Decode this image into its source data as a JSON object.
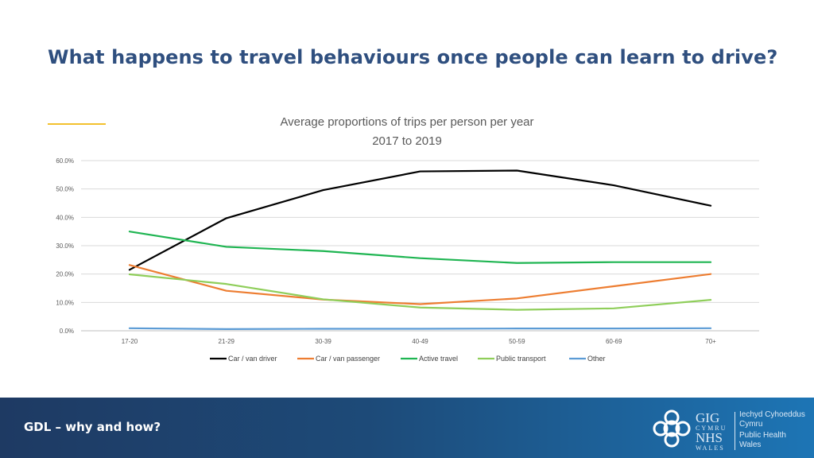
{
  "slide": {
    "title": "What happens to travel behaviours once people can learn to drive?",
    "footer": "GDL – why and how?",
    "accent_color": "#f2c12e",
    "logo": {
      "gig": "GIG",
      "cymru": "CYMRU",
      "nhs": "NHS",
      "wales": "WALES",
      "welsh_name_1": "Iechyd Cyhoeddus",
      "welsh_name_2": "Cymru",
      "english_name_1": "Public Health",
      "english_name_2": "Wales"
    }
  },
  "chart_data": {
    "type": "line",
    "title": "Average proportions of trips per person per year",
    "subtitle": "2017 to 2019",
    "categories": [
      "17-20",
      "21-29",
      "30-39",
      "40-49",
      "50-59",
      "60-69",
      "70+"
    ],
    "ylim": [
      0,
      60
    ],
    "yticks": [
      "0.0%",
      "10.0%",
      "20.0%",
      "30.0%",
      "40.0%",
      "50.0%",
      "60.0%"
    ],
    "grid": true,
    "legend_position": "bottom",
    "series": [
      {
        "name": "Car / van driver",
        "color": "#000000",
        "values": [
          21.5,
          39.7,
          49.6,
          56.2,
          56.5,
          51.3,
          44.1
        ]
      },
      {
        "name": "Car / van passenger",
        "color": "#ed7d31",
        "values": [
          23.2,
          14.1,
          11.0,
          9.4,
          11.4,
          15.7,
          20.0
        ]
      },
      {
        "name": "Active travel",
        "color": "#1fb552",
        "values": [
          35.0,
          29.6,
          28.1,
          25.6,
          23.9,
          24.2,
          24.2
        ]
      },
      {
        "name": "Public transport",
        "color": "#8fce5a",
        "values": [
          19.9,
          16.5,
          11.1,
          8.2,
          7.4,
          7.9,
          10.9
        ]
      },
      {
        "name": "Other",
        "color": "#5b9bd5",
        "values": [
          0.9,
          0.6,
          0.7,
          0.7,
          0.8,
          0.8,
          0.9
        ]
      }
    ]
  }
}
